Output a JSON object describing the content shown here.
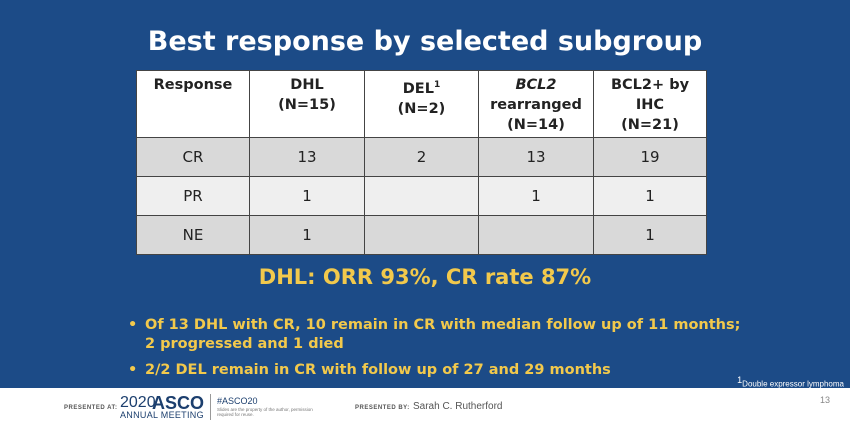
{
  "slide": {
    "title": "Best response by selected subgroup",
    "highlight": "DHL: ORR 93%, CR rate 87%",
    "footnote_marker": "1",
    "footnote": "Double expressor lymphoma"
  },
  "table": {
    "headers": [
      {
        "line1": "Response",
        "line2": "",
        "line3": ""
      },
      {
        "line1": "DHL",
        "line2": "(N=15)",
        "line3": ""
      },
      {
        "line1": "DEL",
        "sup": "1",
        "line2": "(N=2)",
        "line3": ""
      },
      {
        "line1": "BCL2",
        "line2": "rearranged",
        "line3": "(N=14)"
      },
      {
        "line1": "BCL2+ by",
        "line2": "IHC",
        "line3": "(N=21)"
      }
    ],
    "rows": [
      [
        "CR",
        "13",
        "2",
        "13",
        "19"
      ],
      [
        "PR",
        "1",
        "",
        "1",
        "1"
      ],
      [
        "NE",
        "1",
        "",
        "",
        "1"
      ]
    ]
  },
  "bullets": [
    {
      "bullet": "•",
      "line1": "Of 13 DHL with CR, 10 remain in CR with median follow up of 11 months;",
      "line2": "2 progressed and 1 died"
    },
    {
      "bullet": "•",
      "line1": "2/2 DEL remain in CR with follow up of 27 and 29 months",
      "line2": ""
    }
  ],
  "footer": {
    "presented_at_label": "PRESENTED AT:",
    "brand_year": "2020",
    "brand_name": "ASCO",
    "brand_meeting": "ANNUAL MEETING",
    "hashtag": "#ASCO20",
    "permission_note": "Slides are the property of the author, permission required for reuse.",
    "presented_by_label": "PRESENTED BY:",
    "presenter": "Sarah C. Rutherford",
    "page_number": "13"
  },
  "colors": {
    "slide_background": "#1c4b87",
    "title_text": "#ffffff",
    "highlight_text": "#f2c94c",
    "table_row_dark": "#d9d9d9",
    "table_row_light": "#efefef"
  }
}
